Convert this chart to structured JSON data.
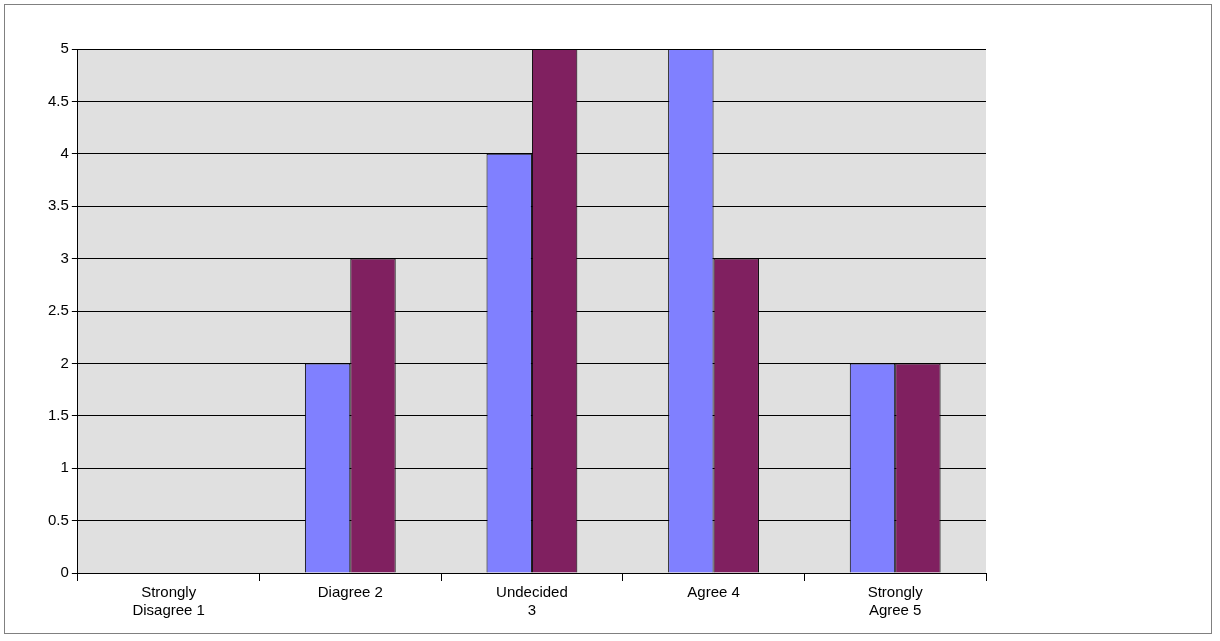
{
  "chart_data": {
    "type": "bar",
    "categories": [
      "Strongly Disagree 1",
      "Diagree 2",
      "Undecided 3",
      "Agree   4",
      "Strongly Agree  5"
    ],
    "series": [
      {
        "color": "#8080ff",
        "values": [
          0,
          2,
          4,
          5,
          2
        ]
      },
      {
        "color": "#802060",
        "values": [
          0,
          3,
          5,
          3,
          2
        ]
      }
    ],
    "ylim": [
      0,
      5
    ],
    "yticks": [
      0,
      0.5,
      1,
      1.5,
      2,
      2.5,
      3,
      3.5,
      4,
      4.5,
      5
    ],
    "grid": "y",
    "legend": false
  }
}
